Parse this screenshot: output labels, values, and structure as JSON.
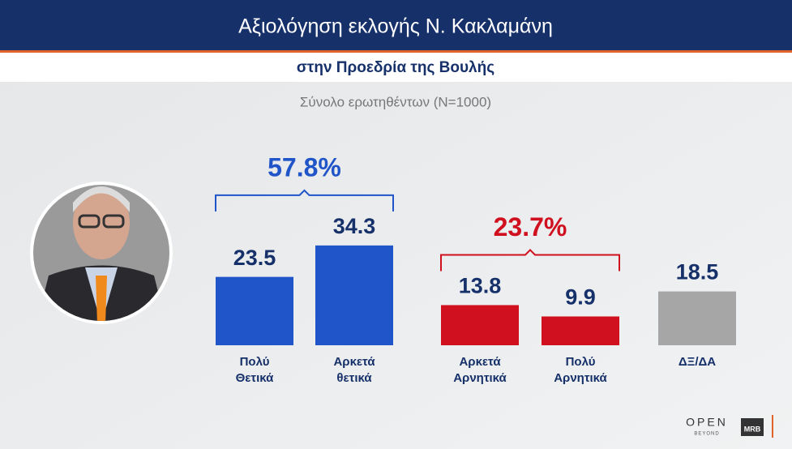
{
  "chart_data": {
    "type": "bar",
    "title": "Αξιολόγηση εκλογής Ν. Κακλαμάνη",
    "subtitle": "στην Προεδρία της Βουλής",
    "note": "Σύνολο ερωτηθέντων (N=1000)",
    "categories": [
      [
        "Πολύ",
        "Θετικά"
      ],
      [
        "Αρκετά",
        "θετικά"
      ],
      [
        "Αρκετά",
        "Αρνητικά"
      ],
      [
        "Πολύ",
        "Αρνητικά"
      ],
      [
        "ΔΞ/ΔΑ"
      ]
    ],
    "values": [
      23.5,
      34.3,
      13.8,
      9.9,
      18.5
    ],
    "colors": [
      "#1f55c8",
      "#1f55c8",
      "#d0101e",
      "#d0101e",
      "#a6a6a6"
    ],
    "group_totals": [
      {
        "value": 57.8,
        "label": "57.8%",
        "color": "#1f55c8"
      },
      {
        "value": 23.7,
        "label": "23.7%",
        "color": "#d0101e"
      }
    ],
    "logo": {
      "brand": "OPEN",
      "tagline": "BEYOND",
      "partner": "MRB"
    }
  }
}
